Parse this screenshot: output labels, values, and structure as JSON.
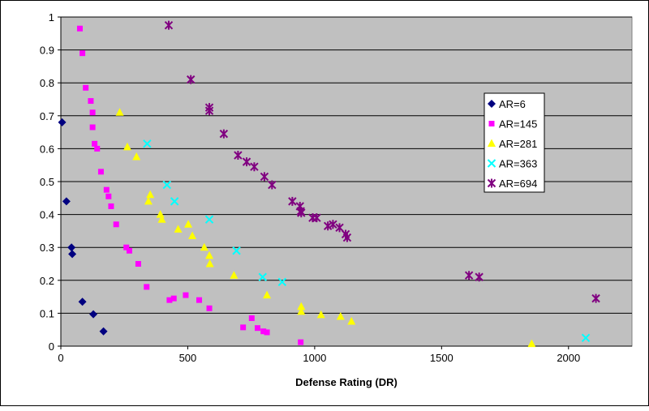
{
  "chart_data": {
    "type": "scatter",
    "title": "",
    "xlabel": "Defense Rating (DR)",
    "ylabel": "",
    "xlim": [
      0,
      2250
    ],
    "ylim": [
      0,
      1
    ],
    "xticks": [
      0,
      500,
      1000,
      1500,
      2000
    ],
    "xtick_labels": [
      "0",
      "500",
      "1000",
      "1500",
      "2000"
    ],
    "yticks": [
      0,
      0.1,
      0.2,
      0.3,
      0.4,
      0.5,
      0.6,
      0.7,
      0.8,
      0.9,
      1
    ],
    "ytick_labels": [
      "0",
      "0.1",
      "0.2",
      "0.3",
      "0.4",
      "0.5",
      "0.6",
      "0.7",
      "0.8",
      "0.9",
      "1"
    ],
    "grid": "horizontal",
    "plot_background": "#c0c0c0",
    "legend_position": "right",
    "series": [
      {
        "name": "AR=6",
        "marker": "diamond",
        "color": "#000080",
        "points": [
          [
            5,
            0.68
          ],
          [
            22,
            0.44
          ],
          [
            42,
            0.3
          ],
          [
            45,
            0.28
          ],
          [
            85,
            0.135
          ],
          [
            128,
            0.097
          ],
          [
            168,
            0.045
          ]
        ]
      },
      {
        "name": "AR=145",
        "marker": "square",
        "color": "#ff00ff",
        "points": [
          [
            75,
            0.965
          ],
          [
            85,
            0.89
          ],
          [
            98,
            0.785
          ],
          [
            118,
            0.745
          ],
          [
            125,
            0.71
          ],
          [
            125,
            0.665
          ],
          [
            133,
            0.615
          ],
          [
            143,
            0.6
          ],
          [
            158,
            0.53
          ],
          [
            180,
            0.475
          ],
          [
            188,
            0.455
          ],
          [
            198,
            0.425
          ],
          [
            218,
            0.37
          ],
          [
            258,
            0.3
          ],
          [
            270,
            0.29
          ],
          [
            305,
            0.25
          ],
          [
            338,
            0.18
          ],
          [
            428,
            0.14
          ],
          [
            445,
            0.145
          ],
          [
            492,
            0.155
          ],
          [
            545,
            0.14
          ],
          [
            585,
            0.115
          ],
          [
            718,
            0.057
          ],
          [
            752,
            0.085
          ],
          [
            775,
            0.055
          ],
          [
            798,
            0.045
          ],
          [
            812,
            0.042
          ],
          [
            945,
            0.012
          ]
        ]
      },
      {
        "name": "AR=281",
        "marker": "triangle",
        "color": "#ffff00",
        "points": [
          [
            232,
            0.71
          ],
          [
            262,
            0.605
          ],
          [
            298,
            0.575
          ],
          [
            345,
            0.44
          ],
          [
            352,
            0.46
          ],
          [
            392,
            0.4
          ],
          [
            398,
            0.385
          ],
          [
            462,
            0.355
          ],
          [
            502,
            0.37
          ],
          [
            518,
            0.335
          ],
          [
            565,
            0.3
          ],
          [
            585,
            0.275
          ],
          [
            587,
            0.25
          ],
          [
            682,
            0.215
          ],
          [
            812,
            0.155
          ],
          [
            947,
            0.12
          ],
          [
            947,
            0.105
          ],
          [
            1025,
            0.095
          ],
          [
            1102,
            0.09
          ],
          [
            1145,
            0.075
          ],
          [
            1855,
            0.007
          ]
        ]
      },
      {
        "name": "AR=363",
        "marker": "x",
        "color": "#00ffff",
        "points": [
          [
            340,
            0.615
          ],
          [
            418,
            0.49
          ],
          [
            448,
            0.44
          ],
          [
            585,
            0.385
          ],
          [
            692,
            0.29
          ],
          [
            795,
            0.21
          ],
          [
            872,
            0.195
          ],
          [
            2068,
            0.025
          ]
        ]
      },
      {
        "name": "AR=694",
        "marker": "star",
        "color": "#800080",
        "points": [
          [
            425,
            0.975
          ],
          [
            512,
            0.81
          ],
          [
            585,
            0.725
          ],
          [
            585,
            0.715
          ],
          [
            642,
            0.645
          ],
          [
            698,
            0.58
          ],
          [
            732,
            0.56
          ],
          [
            762,
            0.545
          ],
          [
            802,
            0.515
          ],
          [
            832,
            0.49
          ],
          [
            912,
            0.44
          ],
          [
            942,
            0.425
          ],
          [
            945,
            0.41
          ],
          [
            947,
            0.405
          ],
          [
            992,
            0.39
          ],
          [
            1008,
            0.39
          ],
          [
            1052,
            0.365
          ],
          [
            1072,
            0.37
          ],
          [
            1098,
            0.36
          ],
          [
            1122,
            0.34
          ],
          [
            1128,
            0.33
          ],
          [
            1608,
            0.215
          ],
          [
            1648,
            0.21
          ],
          [
            2108,
            0.145
          ]
        ]
      }
    ]
  }
}
